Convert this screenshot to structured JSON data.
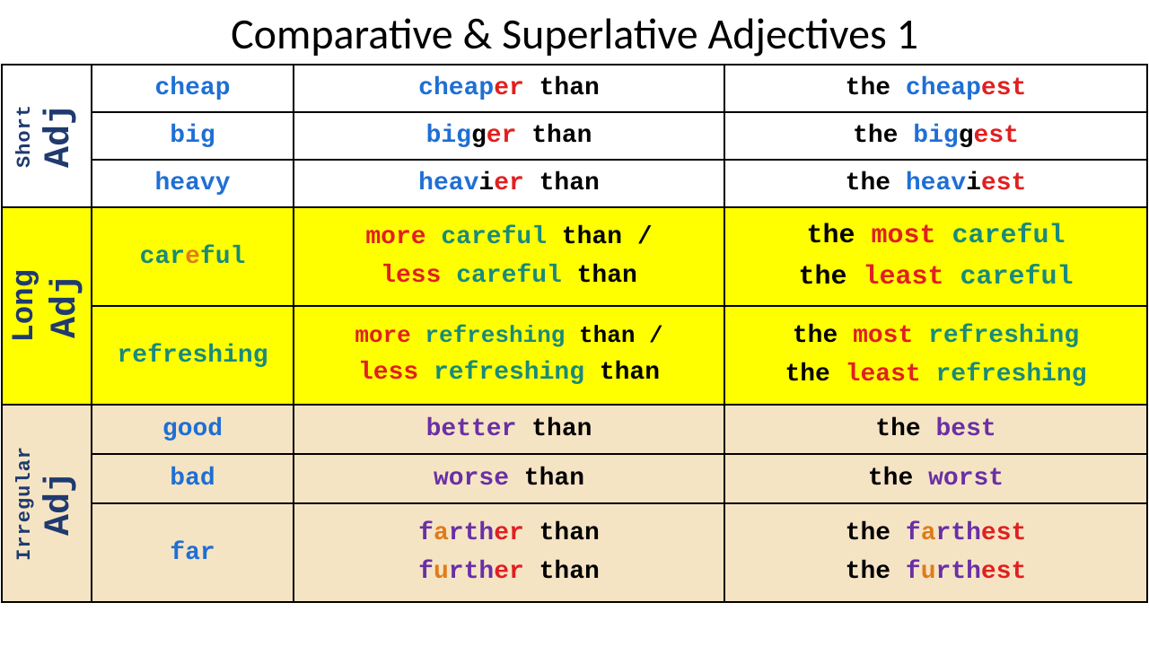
{
  "title": "Comparative & Superlative Adjectives 1",
  "colors": {
    "title": "#000000",
    "rotated_label": "#1f3a6e",
    "blue": "#1f6fd4",
    "black": "#000000",
    "red": "#e02020",
    "teal": "#1a8a7a",
    "orange": "#e07b1a",
    "purple": "#6a2fa5",
    "bg_white": "#ffffff",
    "bg_yellow": "#ffff00",
    "bg_tan": "#f5e4c4",
    "border": "#000000"
  },
  "font_family": "Courier New",
  "title_font_family": "Calibri",
  "title_fontsize": 48,
  "cell_fontsize": 28,
  "rot_small_fontsize": 22,
  "rot_big_fontsize": 40,
  "sections": {
    "short": {
      "small": "Short",
      "big": "Adj"
    },
    "long": {
      "small": "Long",
      "big": "Adj"
    },
    "irr": {
      "small": "Irregular",
      "big": "Adj"
    }
  },
  "rows": {
    "cheap": {
      "base": "cheap",
      "comp_stem": "cheap",
      "comp_suffix": "er",
      "comp_than": " than",
      "sup_the": "the ",
      "sup_stem": "cheap",
      "sup_suffix": "est"
    },
    "big": {
      "base": "big",
      "comp_stem": "big",
      "comp_extra": "g",
      "comp_suffix": "er",
      "comp_than": " than",
      "sup_the": "the ",
      "sup_stem": "big",
      "sup_extra": "g",
      "sup_suffix": "est"
    },
    "heavy": {
      "base": "heavy",
      "comp_stem": "heav",
      "comp_i": "i",
      "comp_suffix": "er",
      "comp_than": " than",
      "sup_the": "the ",
      "sup_stem": "heav",
      "sup_i": "i",
      "sup_suffix": "est"
    },
    "careful": {
      "base_pre": "car",
      "base_e": "e",
      "base_post": "ful",
      "comp_l1_more": "more ",
      "comp_l1_adj": "careful",
      "comp_l1_than": " than",
      "comp_l1_slash": " /",
      "comp_l2_less": "less ",
      "comp_l2_adj": "careful",
      "comp_l2_than": " than",
      "sup_l1_the": "the ",
      "sup_l1_most": "most ",
      "sup_l1_adj": "careful",
      "sup_l2_the": "the ",
      "sup_l2_least": "least ",
      "sup_l2_adj": "careful"
    },
    "refreshing": {
      "base": "refreshing",
      "comp_l1_more": "more ",
      "comp_l1_adj": "refreshing",
      "comp_l1_than": " than",
      "comp_l1_slash": " /",
      "comp_l2_less": "less ",
      "comp_l2_adj": "refreshing",
      "comp_l2_than": " than",
      "sup_l1_the": "the ",
      "sup_l1_most": "most ",
      "sup_l1_adj": "refreshing",
      "sup_l2_the": "the ",
      "sup_l2_least": "least ",
      "sup_l2_adj": "refreshing"
    },
    "good": {
      "base": "good",
      "comp_word": "better",
      "comp_than": " than",
      "sup_the": "the ",
      "sup_word": "best"
    },
    "bad": {
      "base": "bad",
      "comp_word": "worse",
      "comp_than": " than",
      "sup_the": "the ",
      "sup_word": "worst"
    },
    "far": {
      "base": "far",
      "comp_l1_pre": "f",
      "comp_l1_a": "a",
      "comp_l1_mid": "rth",
      "comp_l1_er": "er",
      "comp_l1_than": " than",
      "comp_l2_pre": "f",
      "comp_l2_u": "u",
      "comp_l2_mid": "rth",
      "comp_l2_er": "er",
      "comp_l2_than": " than",
      "sup_l1_the": "the ",
      "sup_l1_pre": "f",
      "sup_l1_a": "a",
      "sup_l1_mid": "rth",
      "sup_l1_est": "est",
      "sup_l2_the": "the ",
      "sup_l2_pre": "f",
      "sup_l2_u": "u",
      "sup_l2_mid": "rth",
      "sup_l2_est": "est"
    }
  }
}
